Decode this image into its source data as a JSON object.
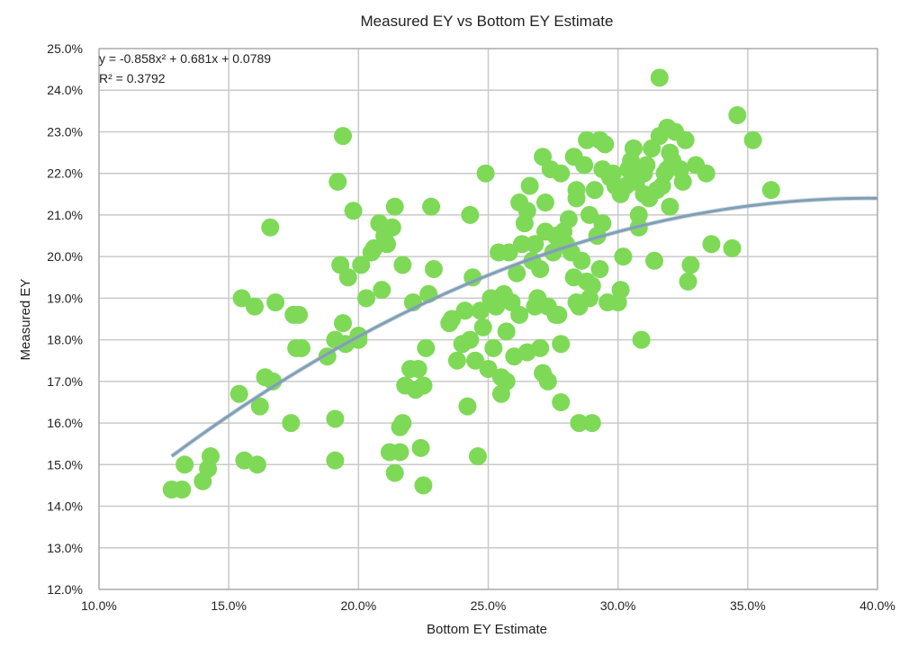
{
  "chart_data": {
    "type": "scatter",
    "title": "Measured EY vs Bottom EY Estimate",
    "xlabel": "Bottom EY Estimate",
    "ylabel": "Measured EY",
    "xlim": [
      0.1,
      0.4
    ],
    "ylim": [
      0.12,
      0.25
    ],
    "x_ticks": [
      0.1,
      0.15,
      0.2,
      0.25,
      0.3,
      0.35,
      0.4
    ],
    "x_tick_labels": [
      "10.0%",
      "15.0%",
      "20.0%",
      "25.0%",
      "30.0%",
      "35.0%",
      "40.0%"
    ],
    "y_ticks": [
      0.12,
      0.13,
      0.14,
      0.15,
      0.16,
      0.17,
      0.18,
      0.19,
      0.2,
      0.21,
      0.22,
      0.23,
      0.24,
      0.25
    ],
    "y_tick_labels": [
      "12.0%",
      "13.0%",
      "14.0%",
      "15.0%",
      "16.0%",
      "17.0%",
      "18.0%",
      "19.0%",
      "20.0%",
      "21.0%",
      "22.0%",
      "23.0%",
      "24.0%",
      "25.0%"
    ],
    "grid": true,
    "point_color": "#7ed957",
    "trend_color": "#7f9fb5",
    "trendline": {
      "type": "polynomial",
      "coefficients": [
        -0.858,
        0.681,
        0.0789
      ],
      "x_range": [
        0.128,
        0.4
      ],
      "equation_text": "y = -0.858x² + 0.681x + 0.0789",
      "r2_text": "R² = 0.3792"
    },
    "points": [
      [
        0.128,
        0.144
      ],
      [
        0.132,
        0.144
      ],
      [
        0.133,
        0.15
      ],
      [
        0.14,
        0.146
      ],
      [
        0.142,
        0.149
      ],
      [
        0.143,
        0.152
      ],
      [
        0.154,
        0.167
      ],
      [
        0.155,
        0.19
      ],
      [
        0.156,
        0.151
      ],
      [
        0.16,
        0.188
      ],
      [
        0.161,
        0.15
      ],
      [
        0.162,
        0.164
      ],
      [
        0.164,
        0.171
      ],
      [
        0.166,
        0.207
      ],
      [
        0.167,
        0.17
      ],
      [
        0.168,
        0.189
      ],
      [
        0.174,
        0.16
      ],
      [
        0.175,
        0.186
      ],
      [
        0.176,
        0.178
      ],
      [
        0.177,
        0.186
      ],
      [
        0.178,
        0.178
      ],
      [
        0.188,
        0.176
      ],
      [
        0.191,
        0.18
      ],
      [
        0.191,
        0.151
      ],
      [
        0.191,
        0.161
      ],
      [
        0.192,
        0.218
      ],
      [
        0.193,
        0.198
      ],
      [
        0.194,
        0.229
      ],
      [
        0.194,
        0.184
      ],
      [
        0.195,
        0.179
      ],
      [
        0.196,
        0.195
      ],
      [
        0.198,
        0.211
      ],
      [
        0.2,
        0.181
      ],
      [
        0.201,
        0.198
      ],
      [
        0.203,
        0.19
      ],
      [
        0.205,
        0.201
      ],
      [
        0.206,
        0.202
      ],
      [
        0.208,
        0.208
      ],
      [
        0.209,
        0.192
      ],
      [
        0.21,
        0.205
      ],
      [
        0.211,
        0.203
      ],
      [
        0.212,
        0.153
      ],
      [
        0.213,
        0.207
      ],
      [
        0.214,
        0.212
      ],
      [
        0.214,
        0.148
      ],
      [
        0.216,
        0.153
      ],
      [
        0.216,
        0.159
      ],
      [
        0.217,
        0.16
      ],
      [
        0.217,
        0.198
      ],
      [
        0.218,
        0.169
      ],
      [
        0.22,
        0.173
      ],
      [
        0.221,
        0.189
      ],
      [
        0.222,
        0.168
      ],
      [
        0.223,
        0.173
      ],
      [
        0.224,
        0.154
      ],
      [
        0.225,
        0.169
      ],
      [
        0.225,
        0.145
      ],
      [
        0.226,
        0.178
      ],
      [
        0.227,
        0.191
      ],
      [
        0.228,
        0.212
      ],
      [
        0.229,
        0.197
      ],
      [
        0.235,
        0.184
      ],
      [
        0.236,
        0.185
      ],
      [
        0.238,
        0.175
      ],
      [
        0.24,
        0.179
      ],
      [
        0.241,
        0.187
      ],
      [
        0.242,
        0.164
      ],
      [
        0.243,
        0.18
      ],
      [
        0.243,
        0.21
      ],
      [
        0.244,
        0.195
      ],
      [
        0.245,
        0.175
      ],
      [
        0.246,
        0.152
      ],
      [
        0.247,
        0.187
      ],
      [
        0.248,
        0.183
      ],
      [
        0.249,
        0.22
      ],
      [
        0.25,
        0.173
      ],
      [
        0.251,
        0.19
      ],
      [
        0.252,
        0.178
      ],
      [
        0.253,
        0.188
      ],
      [
        0.254,
        0.201
      ],
      [
        0.255,
        0.167
      ],
      [
        0.256,
        0.191
      ],
      [
        0.257,
        0.17
      ],
      [
        0.257,
        0.182
      ],
      [
        0.258,
        0.201
      ],
      [
        0.259,
        0.189
      ],
      [
        0.26,
        0.176
      ],
      [
        0.261,
        0.196
      ],
      [
        0.262,
        0.186
      ],
      [
        0.262,
        0.213
      ],
      [
        0.263,
        0.203
      ],
      [
        0.264,
        0.208
      ],
      [
        0.265,
        0.211
      ],
      [
        0.265,
        0.177
      ],
      [
        0.266,
        0.217
      ],
      [
        0.267,
        0.199
      ],
      [
        0.268,
        0.188
      ],
      [
        0.269,
        0.19
      ],
      [
        0.27,
        0.178
      ],
      [
        0.27,
        0.197
      ],
      [
        0.271,
        0.172
      ],
      [
        0.271,
        0.224
      ],
      [
        0.272,
        0.213
      ],
      [
        0.272,
        0.206
      ],
      [
        0.273,
        0.188
      ],
      [
        0.273,
        0.17
      ],
      [
        0.274,
        0.221
      ],
      [
        0.275,
        0.201
      ],
      [
        0.276,
        0.205
      ],
      [
        0.276,
        0.186
      ],
      [
        0.277,
        0.186
      ],
      [
        0.278,
        0.22
      ],
      [
        0.278,
        0.179
      ],
      [
        0.279,
        0.206
      ],
      [
        0.28,
        0.203
      ],
      [
        0.281,
        0.209
      ],
      [
        0.282,
        0.201
      ],
      [
        0.283,
        0.195
      ],
      [
        0.283,
        0.224
      ],
      [
        0.284,
        0.216
      ],
      [
        0.284,
        0.214
      ],
      [
        0.284,
        0.189
      ],
      [
        0.285,
        0.16
      ],
      [
        0.285,
        0.188
      ],
      [
        0.286,
        0.199
      ],
      [
        0.287,
        0.222
      ],
      [
        0.288,
        0.194
      ],
      [
        0.288,
        0.228
      ],
      [
        0.289,
        0.19
      ],
      [
        0.289,
        0.21
      ],
      [
        0.29,
        0.193
      ],
      [
        0.291,
        0.216
      ],
      [
        0.292,
        0.205
      ],
      [
        0.293,
        0.228
      ],
      [
        0.293,
        0.197
      ],
      [
        0.294,
        0.208
      ],
      [
        0.294,
        0.221
      ],
      [
        0.295,
        0.227
      ],
      [
        0.296,
        0.189
      ],
      [
        0.297,
        0.219
      ],
      [
        0.298,
        0.22
      ],
      [
        0.299,
        0.217
      ],
      [
        0.3,
        0.189
      ],
      [
        0.301,
        0.215
      ],
      [
        0.301,
        0.192
      ],
      [
        0.302,
        0.2
      ],
      [
        0.303,
        0.217
      ],
      [
        0.304,
        0.221
      ],
      [
        0.305,
        0.223
      ],
      [
        0.306,
        0.226
      ],
      [
        0.307,
        0.218
      ],
      [
        0.308,
        0.207
      ],
      [
        0.308,
        0.21
      ],
      [
        0.309,
        0.18
      ],
      [
        0.31,
        0.215
      ],
      [
        0.31,
        0.22
      ],
      [
        0.311,
        0.222
      ],
      [
        0.312,
        0.214
      ],
      [
        0.313,
        0.226
      ],
      [
        0.314,
        0.199
      ],
      [
        0.315,
        0.216
      ],
      [
        0.316,
        0.243
      ],
      [
        0.317,
        0.217
      ],
      [
        0.318,
        0.22
      ],
      [
        0.319,
        0.221
      ],
      [
        0.319,
        0.231
      ],
      [
        0.32,
        0.225
      ],
      [
        0.32,
        0.212
      ],
      [
        0.321,
        0.223
      ],
      [
        0.322,
        0.23
      ],
      [
        0.324,
        0.221
      ],
      [
        0.325,
        0.218
      ],
      [
        0.326,
        0.228
      ],
      [
        0.327,
        0.194
      ],
      [
        0.328,
        0.198
      ],
      [
        0.33,
        0.222
      ],
      [
        0.334,
        0.22
      ],
      [
        0.336,
        0.203
      ],
      [
        0.344,
        0.202
      ],
      [
        0.346,
        0.234
      ],
      [
        0.352,
        0.228
      ],
      [
        0.359,
        0.216
      ],
      [
        0.268,
        0.203
      ],
      [
        0.2,
        0.18
      ],
      [
        0.29,
        0.16
      ],
      [
        0.225,
        0.169
      ],
      [
        0.255,
        0.171
      ],
      [
        0.278,
        0.165
      ],
      [
        0.306,
        0.226
      ],
      [
        0.316,
        0.229
      ]
    ]
  }
}
